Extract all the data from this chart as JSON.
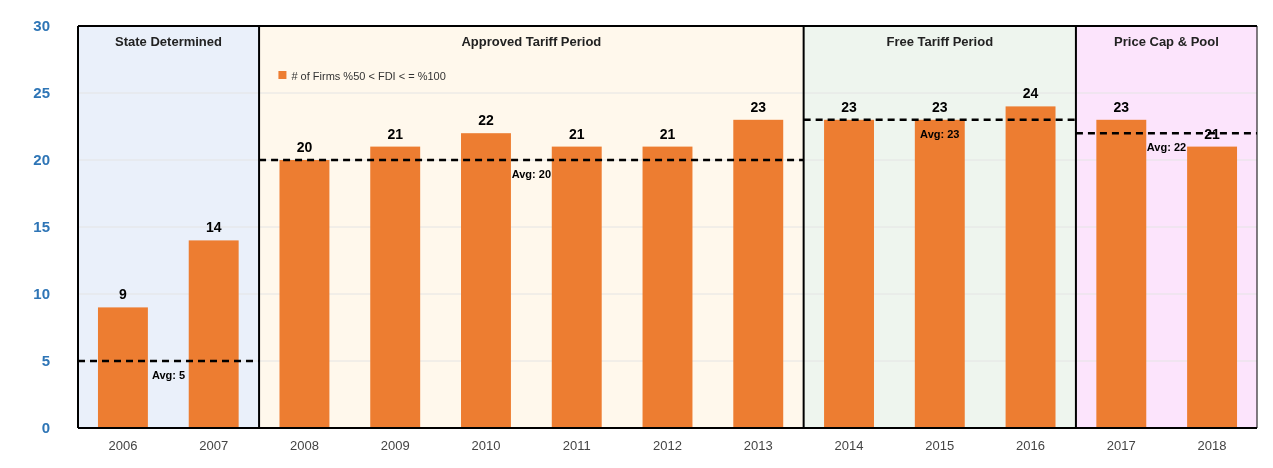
{
  "chart_data": {
    "type": "bar",
    "categories": [
      "2006",
      "2007",
      "2008",
      "2009",
      "2010",
      "2011",
      "2012",
      "2013",
      "2014",
      "2015",
      "2016",
      "2017",
      "2018"
    ],
    "series": [
      {
        "name": "# of Firms %50 < FDI < = %100",
        "color": "#ed7d31",
        "values": [
          9,
          14,
          20,
          21,
          22,
          21,
          21,
          23,
          23,
          23,
          24,
          23,
          21
        ]
      }
    ],
    "ylim": [
      0,
      30
    ],
    "yticks": [
      0,
      5,
      10,
      15,
      20,
      25,
      30
    ],
    "grid": "y",
    "legend": "top left",
    "data_labels": true,
    "bands": [
      {
        "axis": "x",
        "from": "2006",
        "to": "2007",
        "label": "State Determined",
        "color": "#eaf0fa"
      },
      {
        "axis": "x",
        "from": "2008",
        "to": "2013",
        "label": "Approved Tariff Period",
        "color": "#fff8ec"
      },
      {
        "axis": "x",
        "from": "2014",
        "to": "2016",
        "label": "Free Tariff Period",
        "color": "#eef5ee"
      },
      {
        "axis": "x",
        "from": "2017",
        "to": "2018",
        "label": "Price Cap & Pool",
        "color": "#fce4fc"
      }
    ],
    "ref_lines": [
      {
        "axis": "y",
        "value": 5,
        "label": "Avg: 5",
        "line_style": "dashed",
        "color": "#000000"
      },
      {
        "axis": "y",
        "value": 20,
        "label": "Avg: 20",
        "line_style": "dashed",
        "color": "#000000"
      },
      {
        "axis": "y",
        "value": 23,
        "label": "Avg: 23",
        "line_style": "dashed",
        "color": "#000000"
      },
      {
        "axis": "y",
        "value": 22,
        "label": "Avg: 22",
        "line_style": "dashed",
        "color": "#000000"
      }
    ]
  }
}
